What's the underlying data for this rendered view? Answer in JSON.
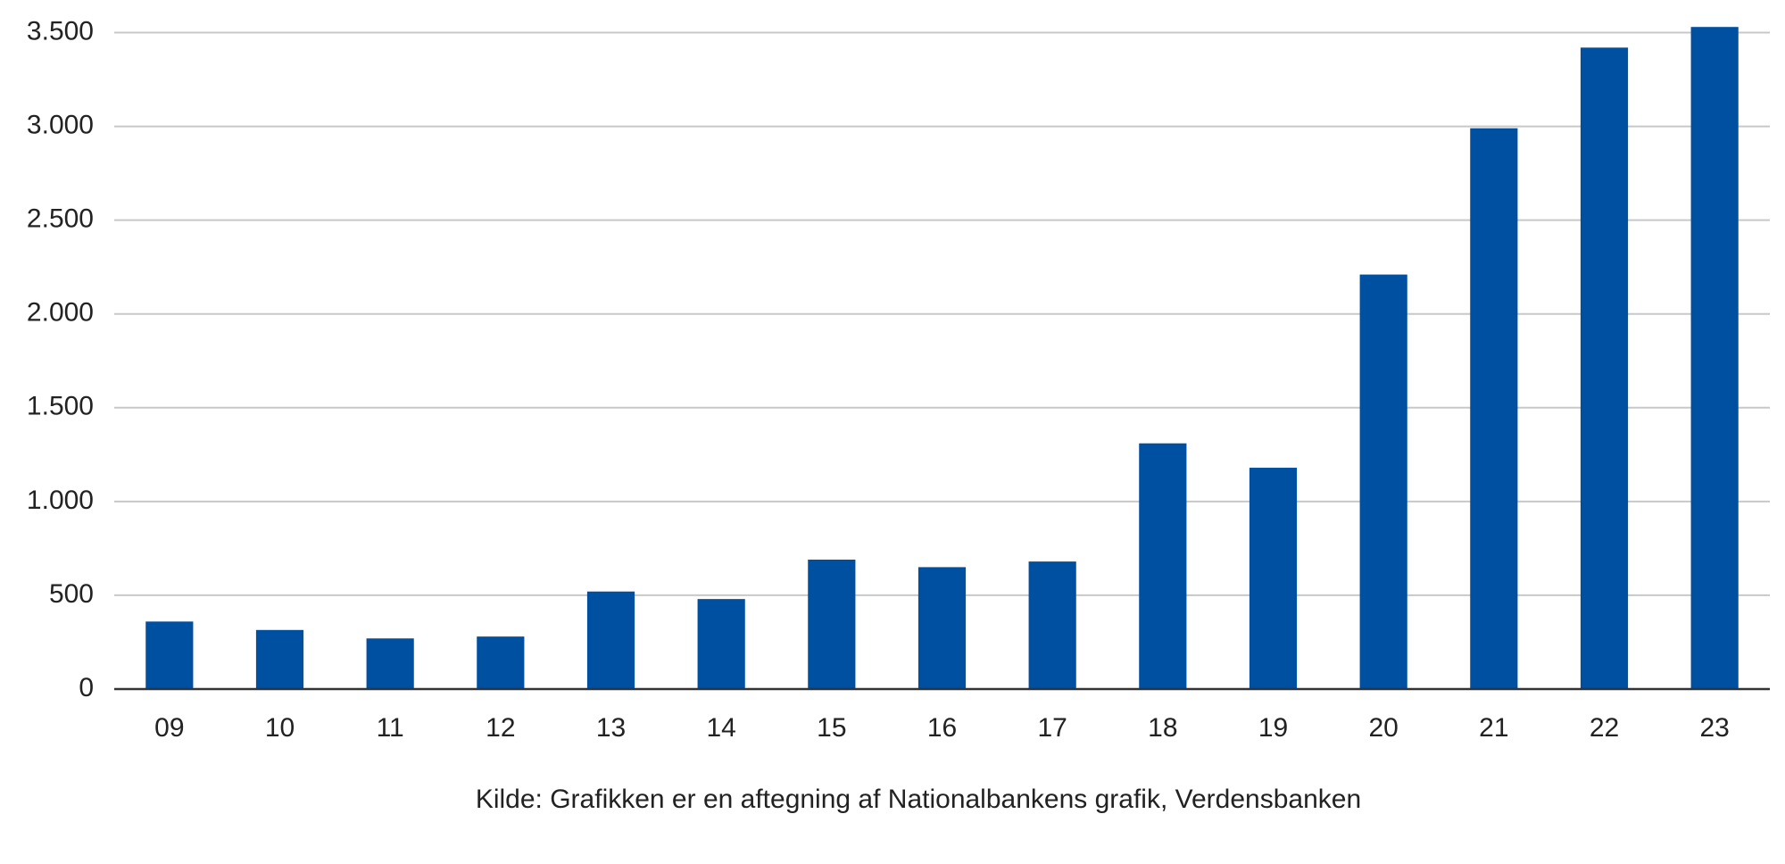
{
  "chart_data": {
    "type": "bar",
    "categories": [
      "09",
      "10",
      "11",
      "12",
      "13",
      "14",
      "15",
      "16",
      "17",
      "18",
      "19",
      "20",
      "21",
      "22",
      "23"
    ],
    "values": [
      360,
      315,
      270,
      280,
      520,
      480,
      690,
      650,
      680,
      1310,
      1180,
      2210,
      2990,
      3420,
      3530
    ],
    "color": "#0050a2",
    "ylim": [
      0,
      3550
    ],
    "yticks": [
      0,
      500,
      {
        "value": 1000,
        "label": "1.000"
      },
      {
        "value": 1500,
        "label": "1.500"
      },
      {
        "value": 2000,
        "label": "2.000"
      },
      {
        "value": 2500,
        "label": "2.500"
      },
      {
        "value": 3000,
        "label": "3.000"
      },
      {
        "value": 3500,
        "label": "3.500"
      }
    ],
    "grid": true,
    "source": "Kilde: Grafikken er en aftegning af Nationalbankens grafik, Verdensbanken"
  }
}
